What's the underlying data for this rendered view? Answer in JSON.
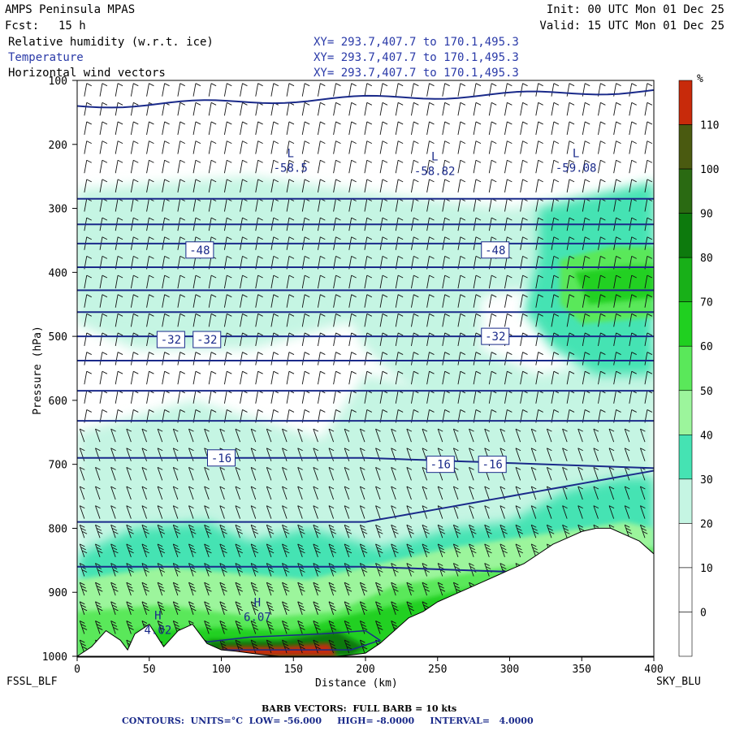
{
  "header": {
    "model": "AMPS Peninsula MPAS",
    "init": "Init: 00 UTC Mon 01 Dec 25",
    "fcst_label": "Fcst:",
    "fcst_value": "15 h",
    "valid": "Valid: 15 UTC Mon 01 Dec 25",
    "fields": [
      {
        "name": "Relative humidity (w.r.t. ice)",
        "xy": "XY= 293.7,407.7 to 170.1,495.3"
      },
      {
        "name": "Temperature",
        "xy": "XY= 293.7,407.7 to 170.1,495.3"
      },
      {
        "name": "Horizontal wind vectors",
        "xy": "XY= 293.7,407.7 to 170.1,495.3"
      }
    ]
  },
  "colors": {
    "contour": "#1a2a8a",
    "terrain": "#ffffff",
    "colorbar": [
      "#ffffff",
      "#ffffff",
      "#ffffff",
      "#c5f5e3",
      "#45e3b3",
      "#9cf59c",
      "#5ae85a",
      "#20d020",
      "#18b018",
      "#0d7a0d",
      "#2a6a12",
      "#4a5a10",
      "#c82a0a"
    ]
  },
  "chart_data": {
    "type": "heatmap",
    "title": "Relative humidity (w.r.t. ice)",
    "xlabel": "Distance (km)",
    "ylabel": "Pressure (hPa)",
    "xlim": [
      0,
      400
    ],
    "ylim": [
      1000,
      100
    ],
    "x_ticks": [
      0,
      50,
      100,
      150,
      200,
      250,
      300,
      350,
      400
    ],
    "y_ticks": [
      100,
      200,
      300,
      400,
      500,
      600,
      700,
      800,
      900,
      1000
    ],
    "left_station": "FSSL_BLF",
    "right_station": "SKY_BLU",
    "colorbar": {
      "unit": "%",
      "levels": [
        0,
        10,
        20,
        30,
        40,
        50,
        60,
        70,
        80,
        90,
        100,
        110
      ]
    },
    "rh_bands": [
      {
        "band": "30-40",
        "x": [
          0,
          400
        ],
        "p": [
          270,
          420
        ]
      },
      {
        "band": "30-40",
        "x": [
          0,
          400
        ],
        "p": [
          470,
          560
        ]
      },
      {
        "band": "40-50",
        "x": [
          320,
          400
        ],
        "p": [
          260,
          520
        ]
      },
      {
        "band": "60-80",
        "x": [
          330,
          400
        ],
        "p": [
          380,
          470
        ]
      },
      {
        "band": "40-70",
        "x": [
          0,
          400
        ],
        "p": [
          800,
          1000
        ]
      },
      {
        "band": "80-110",
        "x": [
          80,
          210
        ],
        "p": [
          950,
          1000
        ]
      }
    ],
    "temperature_labels": [
      {
        "value": "-48",
        "x": 85,
        "p": 365
      },
      {
        "value": "-48",
        "x": 290,
        "p": 365
      },
      {
        "value": "-32",
        "x": 65,
        "p": 505
      },
      {
        "value": "-32",
        "x": 90,
        "p": 505
      },
      {
        "value": "-32",
        "x": 290,
        "p": 500
      },
      {
        "value": "-16",
        "x": 100,
        "p": 690
      },
      {
        "value": "-16",
        "x": 252,
        "p": 700
      },
      {
        "value": "-16",
        "x": 288,
        "p": 700
      }
    ],
    "extrema": [
      {
        "type": "L",
        "value": "-58.5",
        "x": 148,
        "p": 238
      },
      {
        "type": "L",
        "value": "-58.82",
        "x": 248,
        "p": 243
      },
      {
        "type": "L",
        "value": "-59.08",
        "x": 346,
        "p": 238
      },
      {
        "type": "H",
        "value": "4.02",
        "x": 56,
        "p": 960
      },
      {
        "type": "H",
        "value": "6.07",
        "x": 125,
        "p": 940
      }
    ],
    "terrain": {
      "x": [
        0,
        10,
        20,
        30,
        35,
        40,
        50,
        60,
        70,
        80,
        90,
        100,
        110,
        120,
        130,
        140,
        150,
        160,
        170,
        180,
        190,
        200,
        210,
        220,
        230,
        240,
        250,
        260,
        270,
        280,
        290,
        300,
        310,
        320,
        330,
        340,
        350,
        360,
        370,
        380,
        390,
        400
      ],
      "p": [
        1000,
        985,
        960,
        975,
        990,
        965,
        950,
        985,
        960,
        950,
        980,
        990,
        992,
        995,
        998,
        1000,
        1000,
        1000,
        1000,
        1000,
        998,
        995,
        980,
        960,
        940,
        930,
        915,
        905,
        895,
        885,
        875,
        865,
        855,
        840,
        825,
        815,
        805,
        800,
        800,
        810,
        820,
        840
      ]
    }
  },
  "footer": {
    "barb_note": "BARB VECTORS:  FULL BARB = 10 kts",
    "contours": "CONTOURS:  UNITS=°C  LOW= -56.000     HIGH= -8.0000     INTERVAL=   4.0000"
  }
}
